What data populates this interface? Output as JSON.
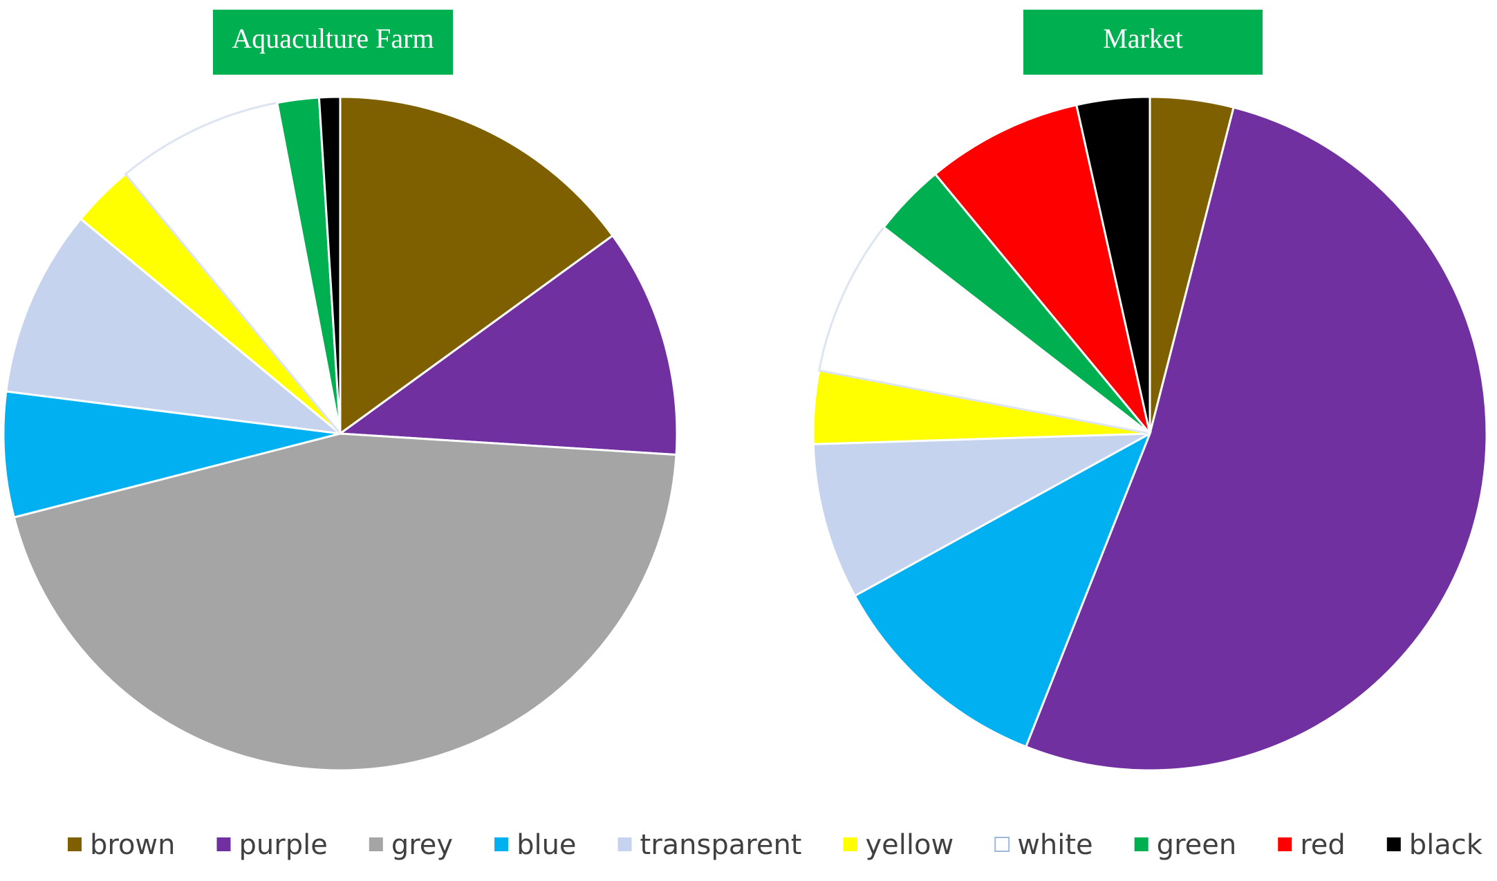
{
  "chart_data": [
    {
      "type": "pie",
      "title": "Aquaculture Farm",
      "categories": [
        "brown",
        "purple",
        "grey",
        "blue",
        "transparent",
        "yellow",
        "white",
        "green",
        "red",
        "black"
      ],
      "values": [
        15,
        11,
        45,
        6,
        9,
        3,
        8,
        2,
        0,
        1
      ],
      "colors": [
        "#7f6000",
        "#7030a0",
        "#a5a5a5",
        "#00b0f0",
        "#c5d3ee",
        "#ffff00",
        "#ffffff",
        "#00b050",
        "#ff0000",
        "#000000"
      ]
    },
    {
      "type": "pie",
      "title": "Market",
      "categories": [
        "brown",
        "purple",
        "grey",
        "blue",
        "transparent",
        "yellow",
        "white",
        "green",
        "red",
        "black"
      ],
      "values": [
        4,
        52,
        0,
        11,
        7.5,
        3.5,
        7.5,
        3.5,
        7.5,
        3.5
      ],
      "colors": [
        "#7f6000",
        "#7030a0",
        "#a5a5a5",
        "#00b0f0",
        "#c5d3ee",
        "#ffff00",
        "#ffffff",
        "#00b050",
        "#ff0000",
        "#000000"
      ]
    }
  ]
}
